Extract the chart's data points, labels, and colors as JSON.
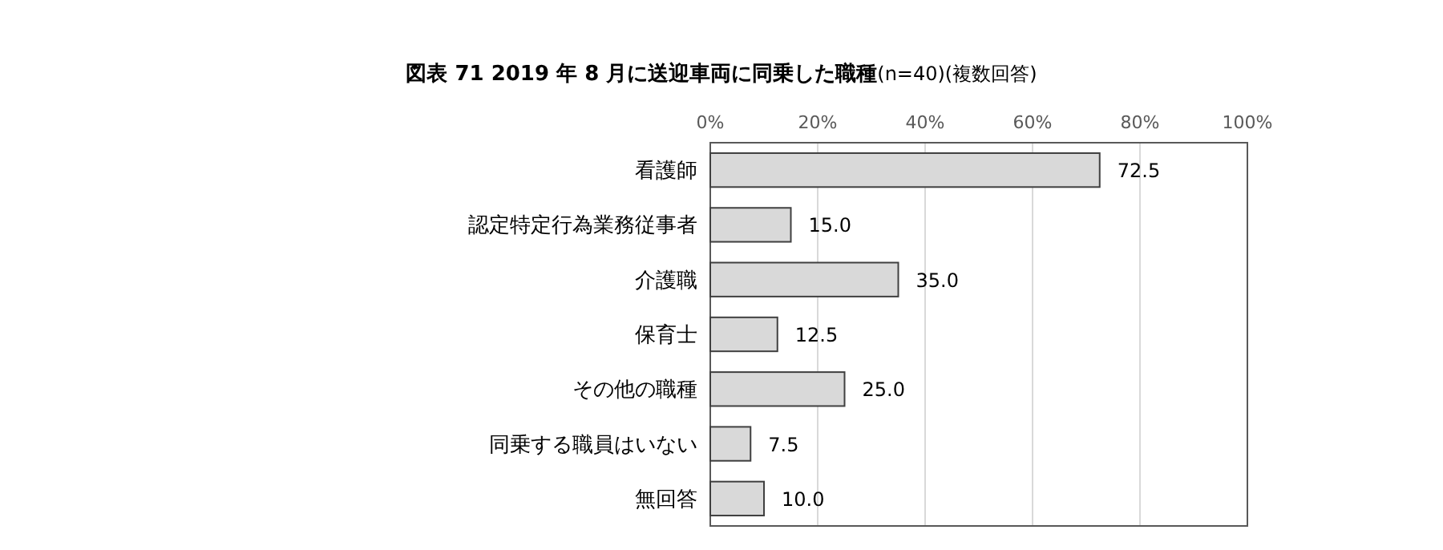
{
  "chart_data": {
    "type": "bar",
    "orientation": "horizontal",
    "title": "図表 71 2019 年 8 月に送迎車両に同乗した職種",
    "subtitle": "(n=40)(複数回答)",
    "categories": [
      "看護師",
      "認定特定行為業務従事者",
      "介護職",
      "保育士",
      "その他の職種",
      "同乗する職員はいない",
      "無回答"
    ],
    "values": [
      72.5,
      15.0,
      35.0,
      12.5,
      25.0,
      7.5,
      10.0
    ],
    "value_labels": [
      "72.5",
      "15.0",
      "35.0",
      "12.5",
      "25.0",
      "7.5",
      "10.0"
    ],
    "color": "#d9d9d9",
    "xlim": [
      0,
      100
    ],
    "xticks": [
      {
        "value": 0,
        "label": "0%"
      },
      {
        "value": 20,
        "label": "20%"
      },
      {
        "value": 40,
        "label": "40%"
      },
      {
        "value": 60,
        "label": "60%"
      },
      {
        "value": 80,
        "label": "80%"
      },
      {
        "value": 100,
        "label": "100%"
      }
    ],
    "grid": "x"
  }
}
